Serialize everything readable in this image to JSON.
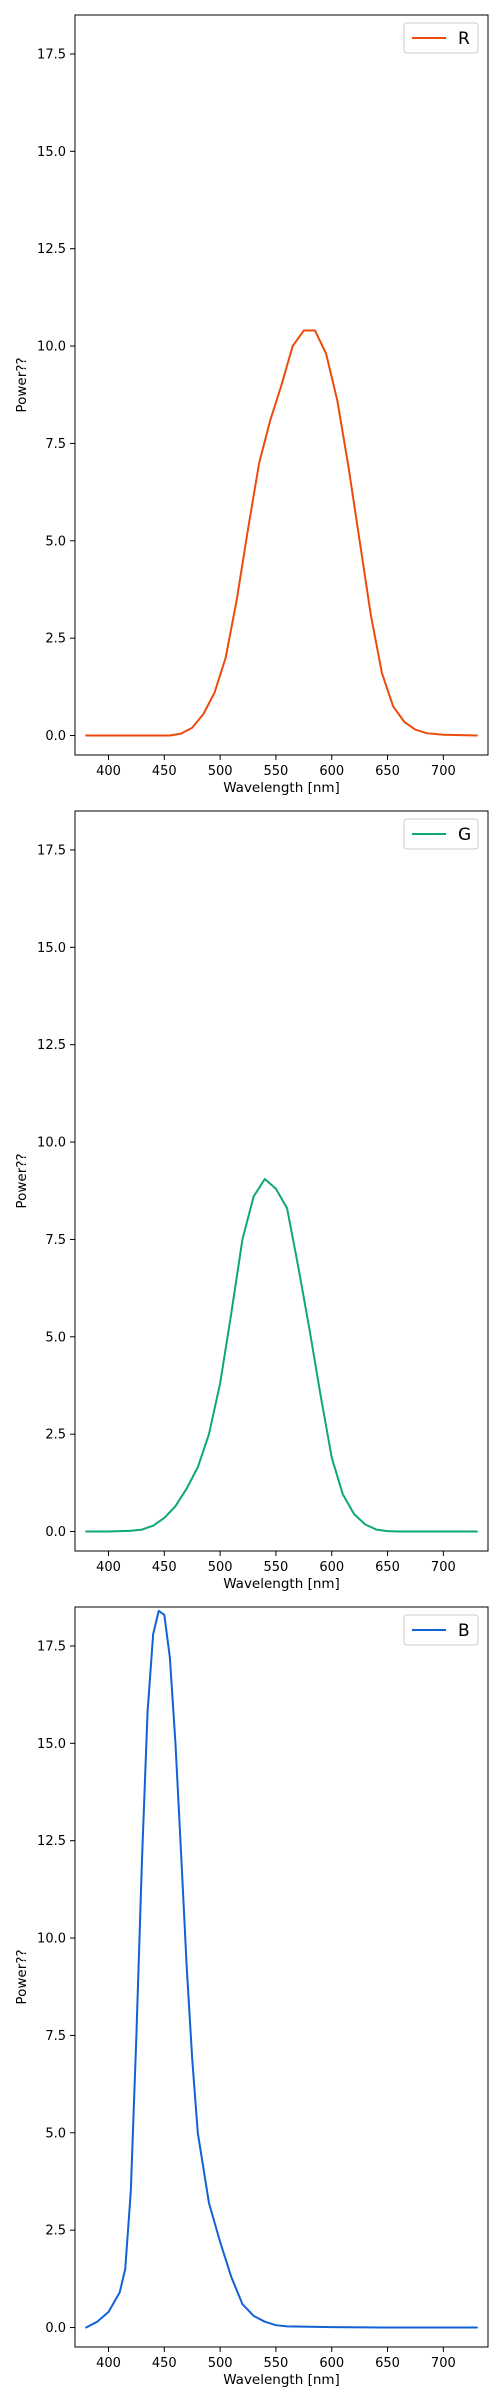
{
  "chart_data": [
    {
      "type": "line",
      "xlabel": "Wavelength [nm]",
      "ylabel": "Power??",
      "xlim": [
        370,
        740
      ],
      "ylim": [
        -0.5,
        18.5
      ],
      "xticks": [
        400,
        450,
        500,
        550,
        600,
        650,
        700
      ],
      "yticks": [
        0.0,
        2.5,
        5.0,
        7.5,
        10.0,
        12.5,
        15.0,
        17.5
      ],
      "legend_position": "top-right",
      "grid": false,
      "series": [
        {
          "name": "R",
          "color": "#ee4a0c",
          "x": [
            380,
            400,
            420,
            440,
            455,
            465,
            475,
            485,
            495,
            505,
            515,
            525,
            535,
            545,
            555,
            565,
            575,
            585,
            595,
            605,
            615,
            625,
            635,
            645,
            655,
            665,
            675,
            685,
            700,
            715,
            730
          ],
          "values": [
            0,
            0,
            0,
            0,
            0,
            0.05,
            0.2,
            0.55,
            1.1,
            2.0,
            3.5,
            5.3,
            7.0,
            8.1,
            9.0,
            10.0,
            10.4,
            10.4,
            9.8,
            8.6,
            6.9,
            5.0,
            3.1,
            1.6,
            0.75,
            0.35,
            0.15,
            0.06,
            0.02,
            0.01,
            0
          ]
        },
        {
          "name": "G",
          "color": "#0da87a",
          "x": [
            380,
            400,
            420,
            430,
            440,
            450,
            460,
            470,
            480,
            490,
            500,
            510,
            520,
            530,
            540,
            550,
            560,
            570,
            580,
            590,
            600,
            610,
            620,
            630,
            640,
            650,
            660,
            680,
            700,
            730
          ],
          "values": [
            0,
            0,
            0.02,
            0.05,
            0.15,
            0.35,
            0.65,
            1.1,
            1.65,
            2.5,
            3.8,
            5.6,
            7.5,
            8.6,
            9.05,
            8.8,
            8.3,
            6.8,
            5.2,
            3.5,
            1.9,
            0.95,
            0.45,
            0.18,
            0.05,
            0.01,
            0,
            0,
            0,
            0
          ]
        },
        {
          "name": "B",
          "color": "#1162d6",
          "x": [
            380,
            390,
            400,
            410,
            415,
            420,
            425,
            430,
            435,
            440,
            445,
            450,
            455,
            460,
            465,
            470,
            475,
            480,
            490,
            500,
            510,
            520,
            530,
            540,
            550,
            560,
            580,
            600,
            650,
            700,
            730
          ],
          "values": [
            0,
            0.15,
            0.4,
            0.9,
            1.5,
            3.5,
            7.5,
            12.0,
            15.8,
            17.8,
            18.4,
            18.3,
            17.2,
            15.0,
            12.2,
            9.3,
            6.9,
            5.0,
            3.2,
            2.2,
            1.3,
            0.6,
            0.3,
            0.15,
            0.06,
            0.03,
            0.02,
            0.01,
            0,
            0,
            0
          ]
        }
      ]
    }
  ]
}
